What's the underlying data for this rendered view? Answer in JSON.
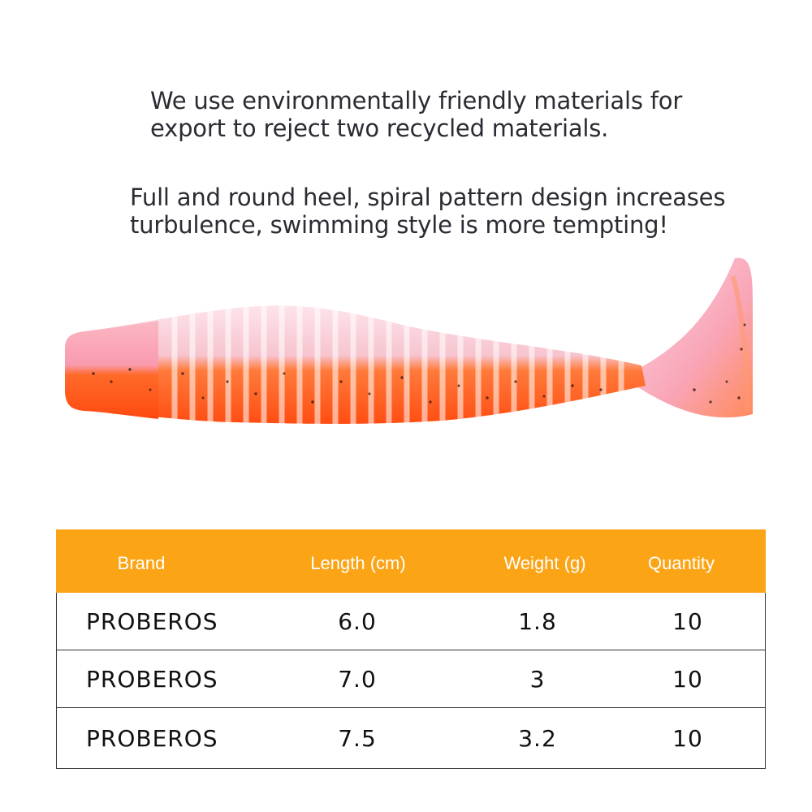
{
  "description": {
    "line1": "We use environmentally friendly materials for",
    "line2": "export to reject two recycled materials.",
    "line3": "Full and round heel, spiral pattern design increases",
    "line4": "turbulence, swimming style is more tempting!"
  },
  "product_image": {
    "colors": {
      "top": "#f7c8d3",
      "belly": "#ff5a1f",
      "tail": "#f9a2b6",
      "glitter": "#3a1d14"
    }
  },
  "spec_table": {
    "header_color": "#fba416",
    "headers": {
      "brand": "Brand",
      "length": "Length (cm)",
      "weight": "Weight (g)",
      "quantity": "Quantity"
    },
    "rows": [
      {
        "brand": "PROBEROS",
        "length": "6.0",
        "weight": "1.8",
        "quantity": "10"
      },
      {
        "brand": "PROBEROS",
        "length": "7.0",
        "weight": "3",
        "quantity": "10"
      },
      {
        "brand": "PROBEROS",
        "length": "7.5",
        "weight": "3.2",
        "quantity": "10"
      }
    ]
  }
}
